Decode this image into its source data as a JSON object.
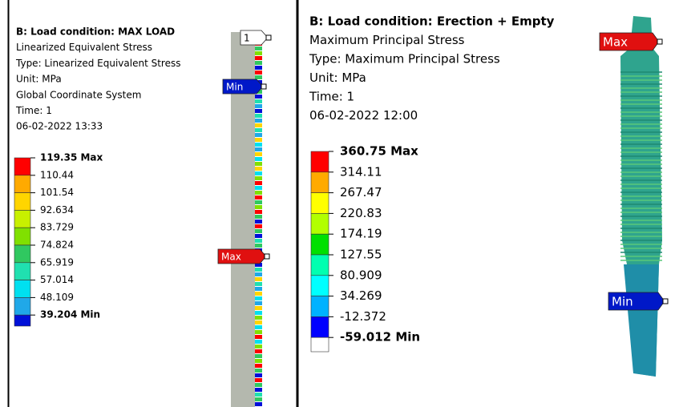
{
  "panels": [
    {
      "title": "B: Load condition: MAX LOAD",
      "lines": [
        "Linearized Equivalent Stress",
        "Type: Linearized Equivalent Stress",
        "Unit: MPa",
        "Global Coordinate System",
        "Time: 1",
        "06-02-2022 13:33"
      ],
      "legend": {
        "labels": [
          "119.35 Max",
          "110.44",
          "101.54",
          "92.634",
          "83.729",
          "74.824",
          "65.919",
          "57.014",
          "48.109",
          "39.204 Min"
        ],
        "colors": [
          "#ff0000",
          "#ffaa00",
          "#ffd500",
          "#c8f000",
          "#80e000",
          "#30c860",
          "#20e0b0",
          "#00e0f0",
          "#20a8e8",
          "#0010d8"
        ]
      },
      "probes": [
        {
          "label": "1",
          "kind": "probe"
        },
        {
          "label": "Min",
          "kind": "min"
        },
        {
          "label": "Max",
          "kind": "max"
        }
      ]
    },
    {
      "title": "B: Load condition: Erection + Empty",
      "lines": [
        "Maximum Principal Stress",
        "Type: Maximum Principal Stress",
        "Unit: MPa",
        "Time: 1",
        "06-02-2022 12:00"
      ],
      "legend": {
        "labels": [
          "360.75 Max",
          "314.11",
          "267.47",
          "220.83",
          "174.19",
          "127.55",
          "80.909",
          "34.269",
          "-12.372",
          "-59.012 Min"
        ],
        "colors": [
          "#ff0000",
          "#ffaa00",
          "#ffff00",
          "#b2ff00",
          "#00e000",
          "#00ffb0",
          "#00ffff",
          "#00b2ff",
          "#0000ff",
          "#ffffff"
        ]
      },
      "probes": [
        {
          "label": "Max",
          "kind": "max"
        },
        {
          "label": "Min",
          "kind": "min"
        }
      ]
    }
  ]
}
